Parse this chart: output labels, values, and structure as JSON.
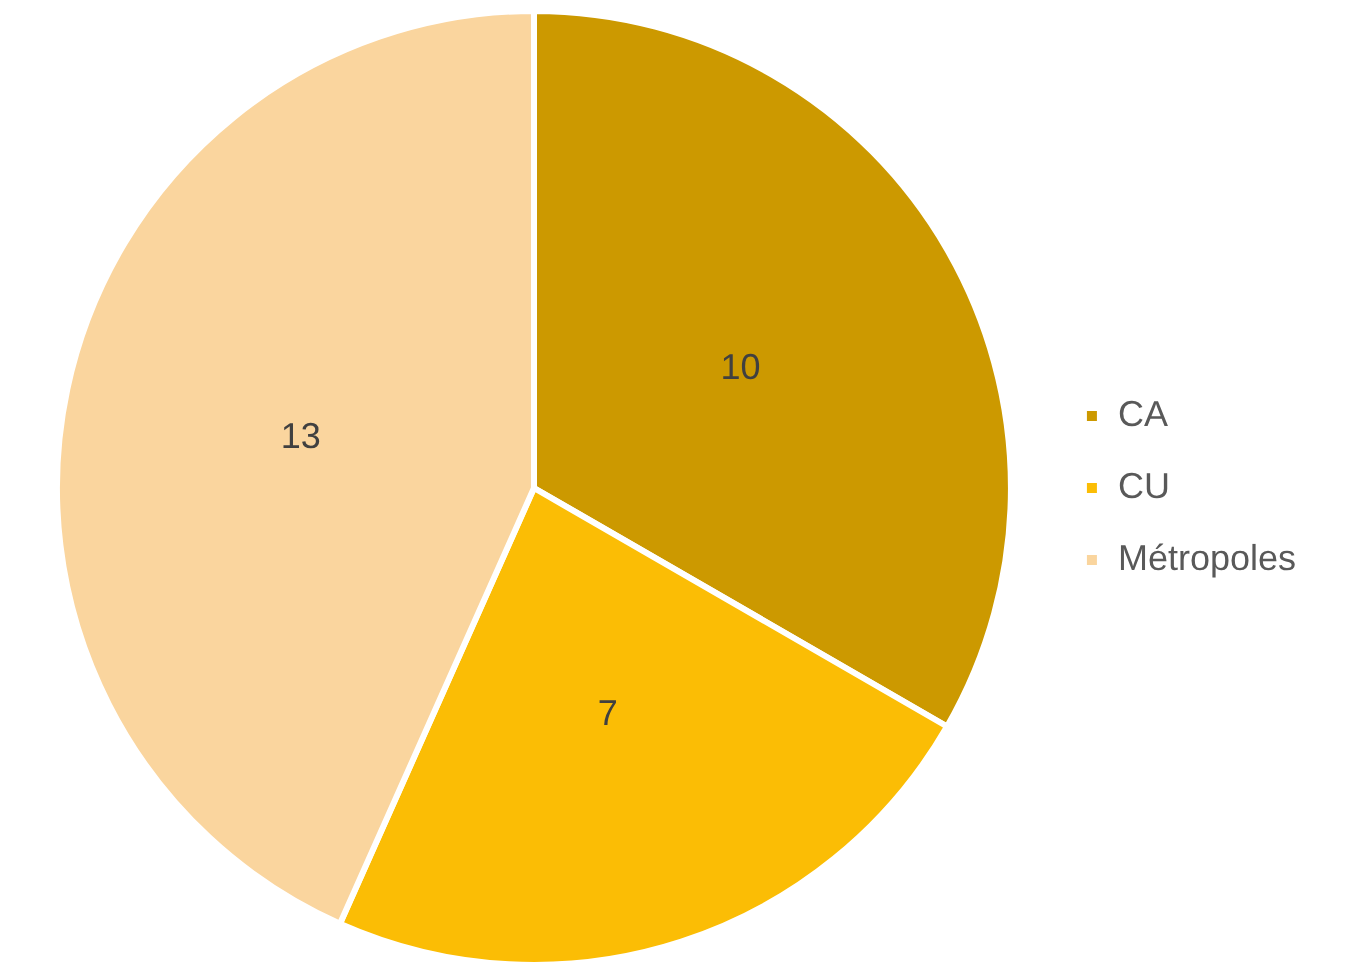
{
  "chart_data": {
    "type": "pie",
    "categories": [
      "CA",
      "CU",
      "Métropoles"
    ],
    "values": [
      10,
      7,
      13
    ],
    "colors": [
      "#cc9900",
      "#fbbd05",
      "#fad59e"
    ],
    "legend": "right",
    "data_labels": true
  }
}
